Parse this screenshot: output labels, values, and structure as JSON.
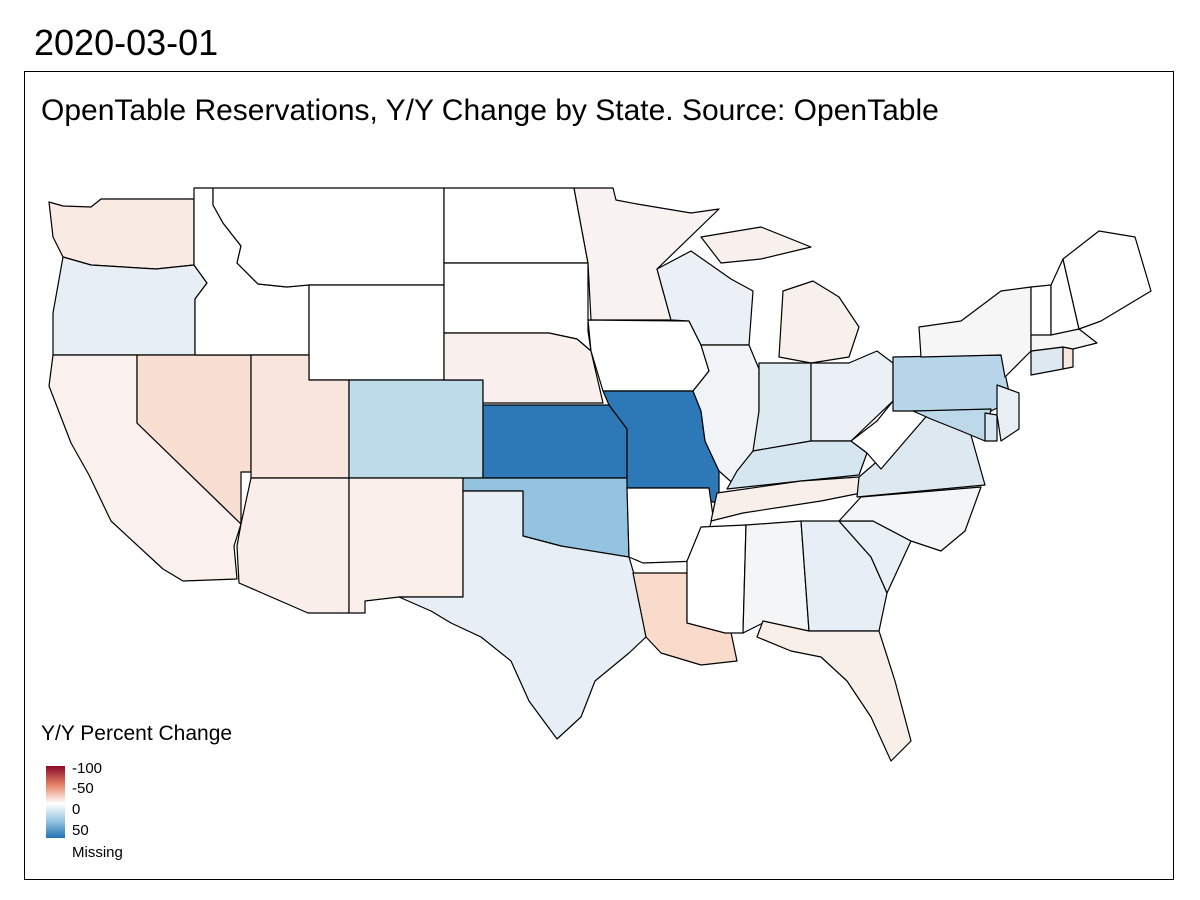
{
  "date_title": "2020-03-01",
  "map_title": "OpenTable Reservations, Y/Y Change by State. Source: OpenTable",
  "legend": {
    "title": "Y/Y Percent Change",
    "labels": [
      "-100",
      "-50",
      "0",
      "50"
    ],
    "missing_label": "Missing"
  },
  "colors": {
    "missing": "#ffffff",
    "stroke": "#000000"
  },
  "states": [
    {
      "id": "WA",
      "color": "#faeae4"
    },
    {
      "id": "OR",
      "color": "#e8eff4"
    },
    {
      "id": "CA",
      "color": "#faf0ed"
    },
    {
      "id": "NV",
      "color": "#f8dfd2"
    },
    {
      "id": "ID",
      "color": "#ffffff"
    },
    {
      "id": "MT",
      "color": "#ffffff"
    },
    {
      "id": "WY",
      "color": "#ffffff"
    },
    {
      "id": "UT",
      "color": "#f8e5dd"
    },
    {
      "id": "AZ",
      "color": "#faeeea"
    },
    {
      "id": "CO",
      "color": "#bedbea"
    },
    {
      "id": "NM",
      "color": "#faefeb"
    },
    {
      "id": "ND",
      "color": "#ffffff"
    },
    {
      "id": "SD",
      "color": "#ffffff"
    },
    {
      "id": "NE",
      "color": "#f9efec"
    },
    {
      "id": "KS",
      "color": "#2d78b7"
    },
    {
      "id": "OK",
      "color": "#93c3de"
    },
    {
      "id": "TX",
      "color": "#e7eef5"
    },
    {
      "id": "MN",
      "color": "#f8f2f0"
    },
    {
      "id": "IA",
      "color": "#ffffff"
    },
    {
      "id": "MO",
      "color": "#2d78b7"
    },
    {
      "id": "AR",
      "color": "#ffffff"
    },
    {
      "id": "LA",
      "color": "#f9dbcc"
    },
    {
      "id": "WI",
      "color": "#eaf0f5"
    },
    {
      "id": "IL",
      "color": "#f1f4f7"
    },
    {
      "id": "MI",
      "color": "#f8f0ec"
    },
    {
      "id": "IN",
      "color": "#deeaf2"
    },
    {
      "id": "OH",
      "color": "#eaf0f5"
    },
    {
      "id": "KY",
      "color": "#d6e6f0"
    },
    {
      "id": "TN",
      "color": "#f8efea"
    },
    {
      "id": "MS",
      "color": "#ffffff"
    },
    {
      "id": "AL",
      "color": "#f4f5f6"
    },
    {
      "id": "GA",
      "color": "#e7eef5"
    },
    {
      "id": "FL",
      "color": "#f8efe9"
    },
    {
      "id": "SC",
      "color": "#e8eff5"
    },
    {
      "id": "NC",
      "color": "#f3f5f7"
    },
    {
      "id": "VA",
      "color": "#dde8f1"
    },
    {
      "id": "WV",
      "color": "#ffffff"
    },
    {
      "id": "PA",
      "color": "#b8d6e9"
    },
    {
      "id": "NY",
      "color": "#f6f6f6"
    },
    {
      "id": "MD",
      "color": "#bcd8e9"
    },
    {
      "id": "DE",
      "color": "#d6e6f0"
    },
    {
      "id": "NJ",
      "color": "#e9f0f5"
    },
    {
      "id": "CT",
      "color": "#dde8f1"
    },
    {
      "id": "RI",
      "color": "#f8e5dd"
    },
    {
      "id": "MA",
      "color": "#f6f6f6"
    },
    {
      "id": "VT",
      "color": "#ffffff"
    },
    {
      "id": "NH",
      "color": "#ffffff"
    },
    {
      "id": "ME",
      "color": "#ffffff"
    }
  ]
}
